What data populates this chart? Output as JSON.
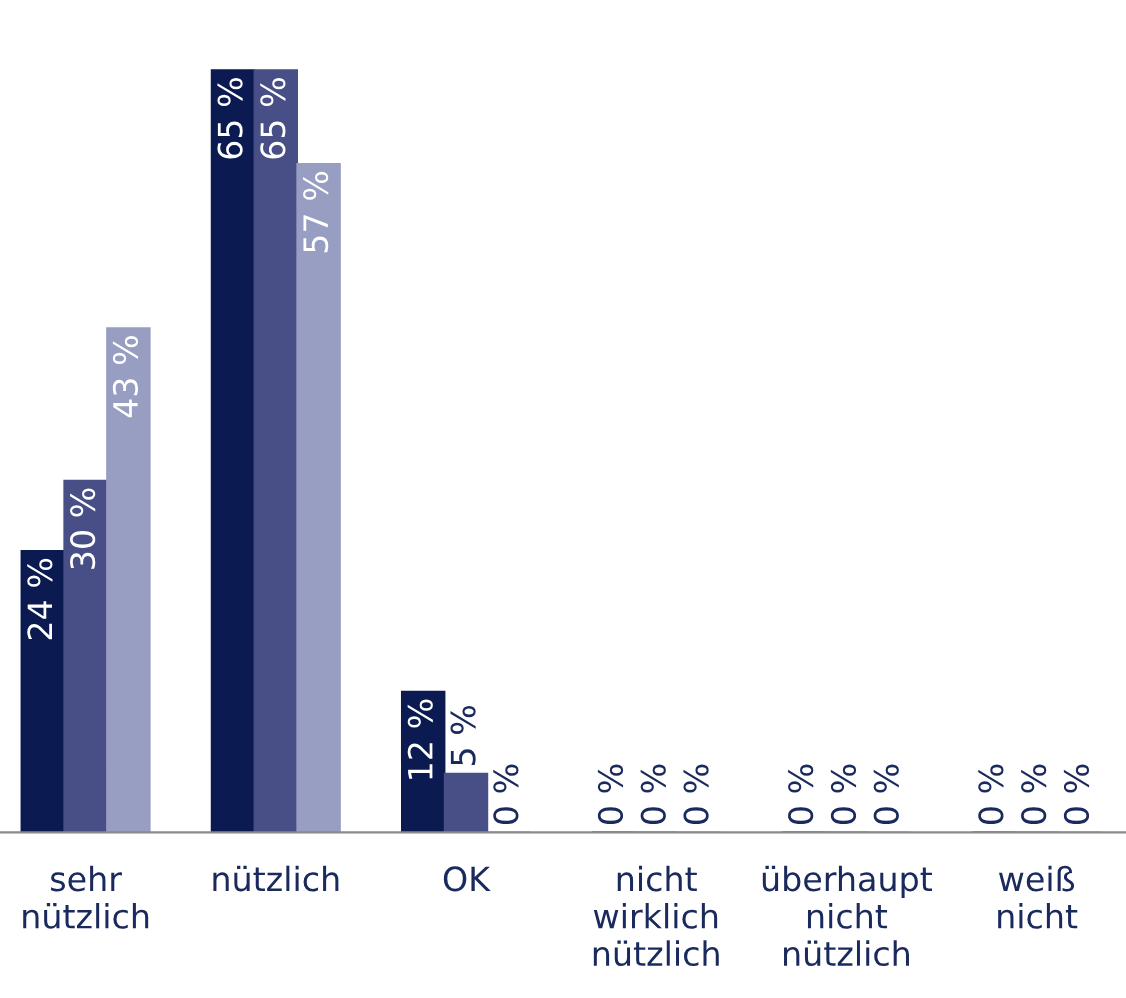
{
  "chart_data": {
    "type": "bar",
    "categories": [
      "sehr\nnützlich",
      "nützlich",
      "OK",
      "nicht\nwirklich\nnützlich",
      "überhaupt\nnicht\nnützlich",
      "weiß\nnicht"
    ],
    "series": [
      {
        "color": "#0b1a50",
        "values": [
          24,
          65,
          12,
          0,
          0,
          0
        ],
        "value_labels": [
          "24 %",
          "65 %",
          "12 %",
          "0 %",
          "0 %",
          "0 %"
        ]
      },
      {
        "color": "#474f86",
        "values": [
          30,
          65,
          5,
          0,
          0,
          0
        ],
        "value_labels": [
          "30 %",
          "65 %",
          "5 %",
          "0 %",
          "0 %",
          "0 %"
        ]
      },
      {
        "color": "#989dc2",
        "values": [
          43,
          57,
          0,
          0,
          0,
          0
        ],
        "value_labels": [
          "43 %",
          "57 %",
          "0 %",
          "0 %",
          "0 %",
          "0 %"
        ]
      }
    ],
    "grid": false,
    "legend": false
  }
}
